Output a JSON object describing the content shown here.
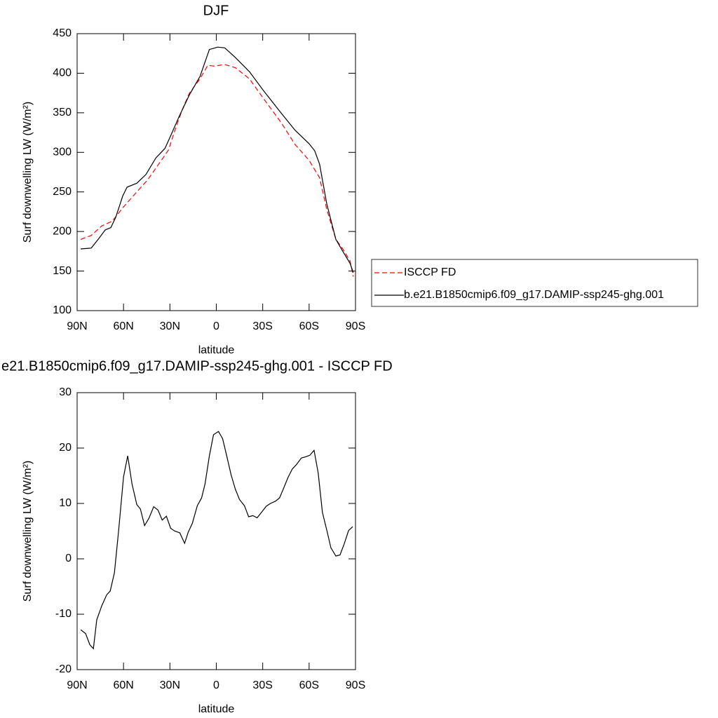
{
  "chart_data": [
    {
      "type": "line",
      "title": "DJF",
      "xlabel": "latitude",
      "ylabel": "Surf downwelling LW (W/m²)",
      "xlim": [
        90,
        -90
      ],
      "xticks": [
        {
          "value": 90,
          "label": "90N"
        },
        {
          "value": 60,
          "label": "60N"
        },
        {
          "value": 30,
          "label": "30N"
        },
        0,
        {
          "value": -30,
          "label": "30S"
        },
        {
          "value": -60,
          "label": "60S"
        },
        {
          "value": -90,
          "label": "90S"
        }
      ],
      "ylim": [
        100,
        450
      ],
      "yticks": [
        100,
        150,
        200,
        250,
        300,
        350,
        400,
        450
      ],
      "legend": "right",
      "series": [
        {
          "name": "ISCCP FD",
          "color": "#ff0000",
          "dash": true,
          "x": [
            87.7,
            80.9,
            74.1,
            67.3,
            60.5,
            51.4,
            44.5,
            35.5,
            30.9,
            26.4,
            21.8,
            17.3,
            10.5,
            5.5,
            1.4,
            -5.5,
            -12.3,
            -21.4,
            -30.5,
            -41.8,
            -50.9,
            -60.0,
            -66.8,
            -71.4,
            -77.3,
            -81.8,
            -86.4,
            -88.6
          ],
          "values": [
            190,
            195,
            207,
            213,
            230,
            250,
            265,
            290,
            303,
            330,
            355,
            375,
            393,
            410,
            409,
            411,
            407,
            393,
            368,
            338,
            310,
            290,
            268,
            228,
            190,
            178,
            163,
            143
          ]
        },
        {
          "name": "b.e21.B1850cmip6.f09_g17.DAMIP-ssp245-ghg.001",
          "color": "#000000",
          "dash": false,
          "x": [
            87.7,
            80.9,
            76.4,
            71.8,
            68.2,
            65.0,
            60.5,
            57.7,
            51.4,
            45.5,
            39.1,
            33.2,
            28.6,
            24.1,
            17.3,
            10.5,
            4.5,
            -0.9,
            -5.5,
            -12.3,
            -21.4,
            -30.5,
            -41.8,
            -50.9,
            -60.0,
            -63.6,
            -66.8,
            -71.4,
            -77.3,
            -81.8,
            -86.4,
            -88.6
          ],
          "values": [
            178,
            179,
            190,
            202,
            205,
            218,
            245,
            256,
            261,
            272,
            293,
            305,
            325,
            345,
            373,
            396,
            430,
            433,
            432,
            420,
            402,
            378,
            350,
            328,
            311,
            302,
            285,
            235,
            190,
            175,
            160,
            148
          ]
        }
      ]
    },
    {
      "type": "line",
      "title": "e21.B1850cmip6.f09_g17.DAMIP-ssp245-ghg.001 - ISCCP FD",
      "xlabel": "latitude",
      "ylabel": "Surf downwelling LW (W/m²)",
      "xlim": [
        90,
        -90
      ],
      "xticks": [
        {
          "value": 90,
          "label": "90N"
        },
        {
          "value": 60,
          "label": "60N"
        },
        {
          "value": 30,
          "label": "30N"
        },
        0,
        {
          "value": -30,
          "label": "30S"
        },
        {
          "value": -60,
          "label": "60S"
        },
        {
          "value": -90,
          "label": "90S"
        }
      ],
      "ylim": [
        -20,
        30
      ],
      "yticks": [
        -20,
        -10,
        0,
        10,
        20,
        30
      ],
      "series": [
        {
          "color": "#000000",
          "dash": false,
          "x": [
            87.7,
            84.5,
            81.8,
            79.5,
            77.3,
            74.1,
            70.9,
            68.6,
            65.9,
            63.2,
            60,
            57.3,
            54.5,
            51.4,
            49.1,
            46.4,
            43.6,
            40.5,
            37.7,
            35,
            32.3,
            29.5,
            26.8,
            23.6,
            20.5,
            18.2,
            15.5,
            12.3,
            9.5,
            7.3,
            4.5,
            1.8,
            -1.4,
            -4.1,
            -6.8,
            -9.5,
            -12.3,
            -15,
            -18.2,
            -20.9,
            -23.6,
            -26.4,
            -29.5,
            -32.3,
            -35,
            -38.2,
            -40.9,
            -43.6,
            -46.4,
            -49.1,
            -51.8,
            -55,
            -57.7,
            -60.5,
            -63.2,
            -65.9,
            -68.6,
            -71.4,
            -74.1,
            -77.3,
            -80,
            -82.7,
            -85.5,
            -88.2
          ],
          "values": [
            -12.8,
            -13.5,
            -15.5,
            -16.2,
            -11,
            -8.5,
            -6.5,
            -5.8,
            -2.5,
            5,
            14.8,
            18.6,
            13.5,
            9.8,
            9,
            6,
            7.3,
            9.4,
            8.8,
            7,
            7.7,
            5.5,
            5,
            4.7,
            2.8,
            4.8,
            6.4,
            9.6,
            11,
            13.5,
            18.6,
            22.4,
            23,
            21.7,
            18.5,
            15.2,
            12.6,
            10.7,
            9.6,
            7.6,
            7.8,
            7.4,
            8.5,
            9.5,
            10,
            10.4,
            11,
            12.8,
            14.7,
            16.2,
            17,
            18.2,
            18.4,
            18.7,
            19.6,
            15.5,
            8.4,
            5.2,
            2,
            0.5,
            0.7,
            2.7,
            5.1,
            5.8
          ]
        }
      ]
    }
  ]
}
